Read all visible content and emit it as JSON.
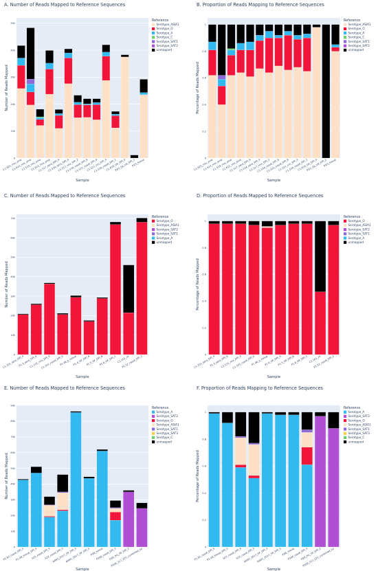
{
  "chart_data": [
    {
      "type": "bar",
      "stacked": true,
      "title": "A. Number of Reads Mapped to Reference Sequences",
      "xlabel": "Sample",
      "ylabel": "Number of Reads Mapped",
      "ylim": [
        0,
        52000
      ],
      "yticks": [
        0,
        10000,
        20000,
        30000,
        40000,
        50000
      ],
      "ytick_labels": [
        "0",
        "10k",
        "20k",
        "30k",
        "40k",
        "50k"
      ],
      "legend_title": "Reference",
      "legend_position": "right",
      "colors": {
        "Serotype_ASIA1": "#fde0c5",
        "Serotype_O": "#f2153a",
        "Serotype_A": "#31b9f0",
        "Serotype_C": "#6bd06b",
        "Serotype_SAT1": "#8e6ad8",
        "Serotype_SAT2": "#b04fd3",
        "unmapped": "#000000"
      },
      "categories": [
        "C1.925_mix_ame",
        "C1.614_mix_ame",
        "C1.519_mix_ame",
        "C1.612_mix_ame",
        "C1.517_sera_DPI_A",
        "C1.534_sera_DPI_4",
        "C1.517_mix_DPI_2",
        "C1.534_nasal_DPI_6",
        "C1.521_nasal_DPI_8",
        "C1.521_oro_DPI_4",
        "C1.534_nasal_DPI_1",
        "C1.618_UK_DPI_0",
        "P.E3_SA_UK_DPI_1",
        "P.E3_tissue"
      ],
      "series": [
        {
          "name": "Serotype_ASIA1",
          "values": [
            25800,
            19700,
            12100,
            23700,
            11000,
            27600,
            15000,
            15100,
            14200,
            28800,
            11200,
            37500,
            0,
            23500
          ]
        },
        {
          "name": "Serotype_O",
          "values": [
            8600,
            4800,
            2200,
            9300,
            4800,
            9500,
            4800,
            4600,
            5600,
            9000,
            4500,
            0,
            0,
            0
          ]
        },
        {
          "name": "Serotype_A",
          "values": [
            2700,
            3000,
            700,
            2200,
            700,
            1900,
            900,
            400,
            800,
            1500,
            600,
            0,
            0,
            800
          ]
        },
        {
          "name": "Serotype_C",
          "values": [
            0,
            0,
            300,
            0,
            0,
            0,
            0,
            0,
            0,
            0,
            0,
            0,
            0,
            0
          ]
        },
        {
          "name": "Serotype_SAT1",
          "values": [
            0,
            1800,
            0,
            0,
            0,
            0,
            0,
            0,
            0,
            0,
            0,
            0,
            0,
            0
          ]
        },
        {
          "name": "Serotype_SAT2",
          "values": [
            0,
            0,
            0,
            0,
            0,
            0,
            0,
            0,
            0,
            0,
            0,
            0,
            0,
            0
          ]
        },
        {
          "name": "unmapped",
          "values": [
            4600,
            19000,
            2800,
            4700,
            1500,
            1500,
            2600,
            1900,
            1400,
            2700,
            1000,
            800,
            1100,
            4900
          ]
        }
      ]
    },
    {
      "type": "bar",
      "stacked": true,
      "title": "B. Proportion of Reads Mapping to Reference Sequences",
      "xlabel": "Sample",
      "ylabel": "Percentage of Reads Mapped",
      "ylim": [
        0,
        1.05
      ],
      "yticks": [
        0,
        0.2,
        0.4,
        0.6,
        0.8,
        1
      ],
      "ytick_labels": [
        "0",
        "0.2",
        "0.4",
        "0.6",
        "0.8",
        "1"
      ],
      "legend_title": "Reference",
      "legend_position": "right",
      "colors": {
        "Serotype_ASIA1": "#fde0c5",
        "Serotype_O": "#f2153a",
        "Serotype_A": "#31b9f0",
        "Serotype_C": "#6bd06b",
        "Serotype_SAT1": "#8e6ad8",
        "Serotype_SAT2": "#b04fd3",
        "unmapped": "#000000"
      },
      "categories": [
        "C1.925_mix_ame",
        "C1.614_mix_ame",
        "C1.519_mix_ame",
        "C1.612_mix_ame",
        "C1.517_sera_DPI_A",
        "C1.534_sera_DPI_4",
        "C1.517_mix_DPI_2",
        "C1.534_nasal_DPI_6",
        "C1.521_nasal_DPI_8",
        "C1.521_oro_DPI_4",
        "C1.534_nasal_DPI_1",
        "C1.618_UK_DPI_0",
        "P.E3_SA_UK_DPI_1",
        "P.E3_tissue"
      ],
      "series": [
        {
          "name": "Serotype_ASIA1",
          "values": [
            0.62,
            0.4,
            0.62,
            0.64,
            0.61,
            0.67,
            0.64,
            0.69,
            0.66,
            0.68,
            0.65,
            0.98,
            0.0,
            0.8
          ]
        },
        {
          "name": "Serotype_O",
          "values": [
            0.19,
            0.14,
            0.15,
            0.17,
            0.2,
            0.21,
            0.26,
            0.21,
            0.26,
            0.21,
            0.25,
            0.0,
            0.0,
            0.03
          ]
        },
        {
          "name": "Serotype_A",
          "values": [
            0.06,
            0.05,
            0.04,
            0.05,
            0.06,
            0.04,
            0.05,
            0.02,
            0.03,
            0.03,
            0.03,
            0.0,
            0.0,
            0.02
          ]
        },
        {
          "name": "Serotype_C",
          "values": [
            0,
            0,
            0.01,
            0,
            0,
            0,
            0,
            0,
            0,
            0,
            0,
            0,
            0,
            0
          ]
        },
        {
          "name": "Serotype_SAT1",
          "values": [
            0,
            0.03,
            0,
            0,
            0,
            0,
            0,
            0,
            0,
            0,
            0,
            0,
            0,
            0
          ]
        },
        {
          "name": "Serotype_SAT2",
          "values": [
            0,
            0,
            0,
            0,
            0,
            0,
            0,
            0,
            0,
            0,
            0,
            0,
            0,
            0
          ]
        },
        {
          "name": "unmapped",
          "values": [
            0.13,
            0.38,
            0.18,
            0.14,
            0.13,
            0.08,
            0.05,
            0.08,
            0.05,
            0.08,
            0.07,
            0.02,
            1.0,
            0.15
          ]
        }
      ]
    },
    {
      "type": "bar",
      "stacked": true,
      "title": "C. Number of Reads Mapped to Reference Sequences",
      "xlabel": "Sample",
      "ylabel": "Number of Reads Mapped",
      "ylim": [
        0,
        72000
      ],
      "yticks": [
        0,
        10000,
        20000,
        30000,
        40000,
        50000,
        60000,
        70000
      ],
      "ytick_labels": [
        "0",
        "10k",
        "20k",
        "30k",
        "40k",
        "50k",
        "60k",
        "70k"
      ],
      "legend_title": "Reference",
      "legend_position": "right",
      "colors": {
        "Serotype_O": "#f2153a",
        "Serotype_ASIA1": "#fde0c5",
        "Serotype_SAT2": "#b04fd3",
        "Serotype_SAT1": "#8e6ad8",
        "Serotype_A": "#31b9f0",
        "unmapped": "#000000"
      },
      "categories": [
        "C1.101_sera_DPI_4",
        "P1.3_sera_DPI_6",
        "C1.131_mix_DPI_4",
        "C1.101_nasal_DPI_0",
        "P1.46_p_tissue",
        "P1.4_OF_DPI_A",
        "P1.5_OF_DPI_B",
        "P1.6_OF_DPI_C",
        "C1.101_nk",
        "P1.52_nasal_DPI_2"
      ],
      "series": [
        {
          "name": "Serotype_O",
          "values": [
            20500,
            25600,
            36300,
            20600,
            29400,
            17000,
            28800,
            66800,
            21500,
            68000
          ]
        },
        {
          "name": "Serotype_ASIA1",
          "values": [
            0,
            0,
            0,
            0,
            0,
            0,
            0,
            0,
            0,
            0
          ]
        },
        {
          "name": "Serotype_SAT2",
          "values": [
            0,
            0,
            0,
            0,
            0,
            0,
            0,
            0,
            0,
            0
          ]
        },
        {
          "name": "Serotype_SAT1",
          "values": [
            0,
            0,
            0,
            0,
            0,
            0,
            0,
            0,
            0,
            0
          ]
        },
        {
          "name": "Serotype_A",
          "values": [
            0,
            0,
            0,
            0,
            0,
            0,
            0,
            0,
            0,
            0
          ]
        },
        {
          "name": "unmapped",
          "values": [
            400,
            500,
            500,
            600,
            900,
            500,
            500,
            1300,
            24500,
            2100
          ]
        }
      ]
    },
    {
      "type": "bar",
      "stacked": true,
      "title": "D. Proportion of Reads Mapped to Reference Sequences",
      "xlabel": "Sample",
      "ylabel": "Percentage of Reads Mapped",
      "ylim": [
        0,
        1.05
      ],
      "yticks": [
        0,
        0.2,
        0.4,
        0.6,
        0.8,
        1
      ],
      "ytick_labels": [
        "0",
        "0.2",
        "0.4",
        "0.6",
        "0.8",
        "1"
      ],
      "legend_title": "Reference",
      "legend_position": "right",
      "colors": {
        "Serotype_O": "#f2153a",
        "Serotype_ASIA1": "#fde0c5",
        "Serotype_SAT2": "#b04fd3",
        "Serotype_SAT1": "#8e6ad8",
        "Serotype_A": "#31b9f0",
        "unmapped": "#000000"
      },
      "categories": [
        "C1.101_sera_DPI_4",
        "P1.3_sera_DPI_6",
        "C1.131_mix_DPI_4",
        "C1.101_nasal_DPI_0",
        "P1.46_p_tissue",
        "P1.4_OF_DPI_A",
        "P1.5_OF_DPI_B",
        "P1.6_OF_DPI_C",
        "C1.101_nk",
        "P1.52_nasal_DPI_2"
      ],
      "series": [
        {
          "name": "Serotype_O",
          "values": [
            0.98,
            0.98,
            0.98,
            0.97,
            0.95,
            0.97,
            0.98,
            0.98,
            0.47,
            0.97
          ]
        },
        {
          "name": "Serotype_ASIA1",
          "values": [
            0,
            0,
            0,
            0,
            0.01,
            0,
            0,
            0,
            0,
            0
          ]
        },
        {
          "name": "Serotype_SAT2",
          "values": [
            0,
            0,
            0,
            0,
            0,
            0,
            0,
            0,
            0,
            0
          ]
        },
        {
          "name": "Serotype_SAT1",
          "values": [
            0,
            0,
            0,
            0,
            0,
            0,
            0,
            0,
            0,
            0
          ]
        },
        {
          "name": "Serotype_A",
          "values": [
            0,
            0,
            0,
            0,
            0,
            0,
            0,
            0,
            0,
            0
          ]
        },
        {
          "name": "unmapped",
          "values": [
            0.02,
            0.02,
            0.02,
            0.03,
            0.04,
            0.03,
            0.02,
            0.02,
            0.53,
            0.03
          ]
        }
      ]
    },
    {
      "type": "bar",
      "stacked": true,
      "title": "E. Number of Reads Mapped to Reference Sequences",
      "xlabel": "Sample",
      "ylabel": "Number of Reads Mapped",
      "ylim": [
        0,
        90000
      ],
      "yticks": [
        0,
        10000,
        20000,
        30000,
        40000,
        50000,
        60000,
        70000,
        80000,
        90000
      ],
      "ytick_labels": [
        "0",
        "10k",
        "20k",
        "30k",
        "40k",
        "50k",
        "60k",
        "70k",
        "80k",
        "90k"
      ],
      "legend_title": "Reference",
      "legend_position": "right",
      "colors": {
        "Serotype_A": "#31b9f0",
        "Serotype_SAT2": "#b04fd3",
        "Serotype_O": "#f2153a",
        "Serotype_ASIA1": "#fde0c5",
        "Serotype_SAT1": "#8e6ad8",
        "Serotype_SAT3": "#f5d247",
        "Serotype_C": "#6bd06b",
        "unmapped": "#000000"
      },
      "categories": [
        "P1.82_nasal_DPI_5",
        "P1.48_tissue_DPI_5",
        "S21_nasal_DPI_4",
        "S22_nasal_DPI_3",
        "AAN1_2017_OF_DPI_3",
        "AAN1_2017_OF_DPI_5",
        "P.E6_tissue",
        "P206_nasal_DPI_3",
        "P.E6_PG_OF_DPI_2",
        "P209_217_221_combined_kp"
      ],
      "series": [
        {
          "name": "Serotype_A",
          "values": [
            42600,
            47000,
            19000,
            23000,
            85500,
            43600,
            61000,
            17000,
            0,
            0
          ]
        },
        {
          "name": "Serotype_SAT2",
          "values": [
            0,
            0,
            0,
            0,
            0,
            0,
            0,
            0,
            35000,
            24500
          ]
        },
        {
          "name": "Serotype_O",
          "values": [
            0,
            0,
            500,
            700,
            0,
            0,
            0,
            5200,
            0,
            0
          ]
        },
        {
          "name": "Serotype_ASIA1",
          "values": [
            0,
            0,
            7000,
            10800,
            0,
            0,
            0,
            2300,
            0,
            0
          ]
        },
        {
          "name": "Serotype_SAT1",
          "values": [
            0,
            0,
            300,
            500,
            0,
            0,
            0,
            500,
            0,
            0
          ]
        },
        {
          "name": "Serotype_SAT3",
          "values": [
            0,
            0,
            0,
            0,
            0,
            0,
            0,
            0,
            0,
            0
          ]
        },
        {
          "name": "Serotype_C",
          "values": [
            0,
            0,
            0,
            0,
            0,
            0,
            0,
            0,
            0,
            0
          ]
        },
        {
          "name": "unmapped",
          "values": [
            500,
            4000,
            5200,
            11000,
            700,
            1000,
            1000,
            4500,
            1000,
            3500
          ]
        }
      ]
    },
    {
      "type": "bar",
      "stacked": true,
      "title": "F. Proportion of Reads Mapping to Reference Sequences",
      "xlabel": "Sample",
      "ylabel": "Percentage of Reads Mapped",
      "ylim": [
        0,
        1.05
      ],
      "yticks": [
        0,
        0.2,
        0.4,
        0.6,
        0.8,
        1
      ],
      "ytick_labels": [
        "0",
        "0.2",
        "0.4",
        "0.6",
        "0.8",
        "1"
      ],
      "legend_title": "Reference",
      "legend_position": "right",
      "colors": {
        "Serotype_A": "#31b9f0",
        "Serotype_SAT2": "#b04fd3",
        "Serotype_O": "#f2153a",
        "Serotype_ASIA1": "#fde0c5",
        "Serotype_SAT1": "#8e6ad8",
        "Serotype_SAT3": "#f5d247",
        "Serotype_C": "#6bd06b",
        "unmapped": "#000000"
      },
      "categories": [
        "P1.82_nasal_DPI_5",
        "P1.48_tissue_DPI_5",
        "S21_nasal_DPI_4",
        "S22_nasal_DPI_3",
        "AAN1_2017_OF_DPI_3",
        "AAN1_2017_OF_DPI_5",
        "P.E6_tissue",
        "P206_nasal_DPI_3",
        "P.E6_PG_OF_DPI_2",
        "P209_217_221_combined_kp"
      ],
      "series": [
        {
          "name": "Serotype_A",
          "values": [
            0.99,
            0.92,
            0.59,
            0.51,
            0.99,
            0.98,
            0.98,
            0.61,
            0,
            0
          ]
        },
        {
          "name": "Serotype_SAT2",
          "values": [
            0,
            0,
            0,
            0,
            0,
            0,
            0,
            0,
            0.97,
            0.88
          ]
        },
        {
          "name": "Serotype_O",
          "values": [
            0,
            0,
            0.02,
            0.02,
            0,
            0,
            0,
            0.13,
            0,
            0
          ]
        },
        {
          "name": "Serotype_ASIA1",
          "values": [
            0,
            0,
            0.2,
            0.23,
            0,
            0,
            0,
            0.11,
            0,
            0
          ]
        },
        {
          "name": "Serotype_SAT1",
          "values": [
            0,
            0,
            0.01,
            0.01,
            0,
            0,
            0,
            0.02,
            0,
            0
          ]
        },
        {
          "name": "Serotype_SAT3",
          "values": [
            0,
            0,
            0,
            0,
            0,
            0,
            0,
            0,
            0,
            0
          ]
        },
        {
          "name": "Serotype_C",
          "values": [
            0,
            0,
            0,
            0,
            0,
            0,
            0,
            0,
            0,
            0
          ]
        },
        {
          "name": "unmapped",
          "values": [
            0.01,
            0.08,
            0.18,
            0.23,
            0.01,
            0.02,
            0.02,
            0.13,
            0.03,
            0.12
          ]
        }
      ]
    }
  ]
}
